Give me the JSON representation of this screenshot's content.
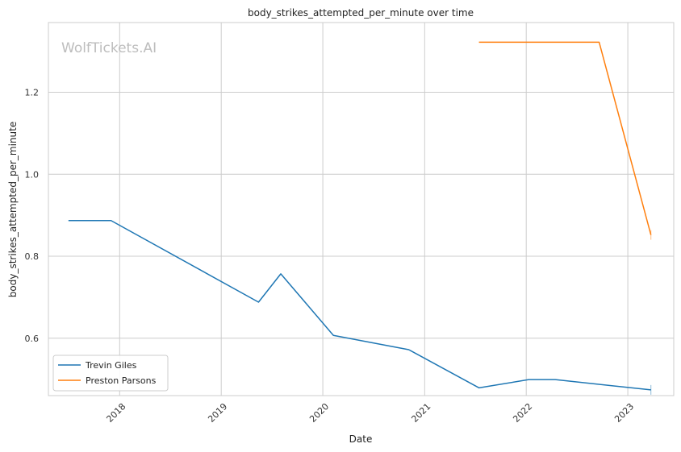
{
  "chart_data": {
    "type": "line",
    "title": "body_strikes_attempted_per_minute over time",
    "xlabel": "Date",
    "ylabel": "body_strikes_attempted_per_minute",
    "watermark": "WolfTickets.AI",
    "x_axis_type": "date",
    "xlim": [
      "2017-04-20",
      "2023-06-15"
    ],
    "ylim": [
      0.46,
      1.37
    ],
    "x_ticks": [
      "2018-01-01",
      "2019-01-01",
      "2020-01-01",
      "2021-01-01",
      "2022-01-01",
      "2023-01-01"
    ],
    "x_tick_labels": [
      "2018",
      "2019",
      "2020",
      "2021",
      "2022",
      "2023"
    ],
    "y_ticks": [
      0.6,
      0.8,
      1.0,
      1.2
    ],
    "y_tick_labels": [
      "0.6",
      "0.8",
      "1.0",
      "1.2"
    ],
    "grid": true,
    "legend_position": "bottom-left",
    "series": [
      {
        "name": "Trevin Giles",
        "color": "#1f77b4",
        "points": [
          {
            "x": "2017-07-01",
            "y": 0.887
          },
          {
            "x": "2017-12-01",
            "y": 0.887
          },
          {
            "x": "2019-05-15",
            "y": 0.688
          },
          {
            "x": "2019-08-03",
            "y": 0.757
          },
          {
            "x": "2020-02-08",
            "y": 0.607
          },
          {
            "x": "2020-11-05",
            "y": 0.572
          },
          {
            "x": "2021-07-15",
            "y": 0.479
          },
          {
            "x": "2022-01-10",
            "y": 0.499
          },
          {
            "x": "2022-04-15",
            "y": 0.499
          },
          {
            "x": "2023-03-25",
            "y": 0.474
          }
        ]
      },
      {
        "name": "Preston Parsons",
        "color": "#ff7f0e",
        "points": [
          {
            "x": "2021-07-15",
            "y": 1.322
          },
          {
            "x": "2022-09-20",
            "y": 1.322
          },
          {
            "x": "2023-03-25",
            "y": 0.852
          }
        ]
      }
    ]
  }
}
